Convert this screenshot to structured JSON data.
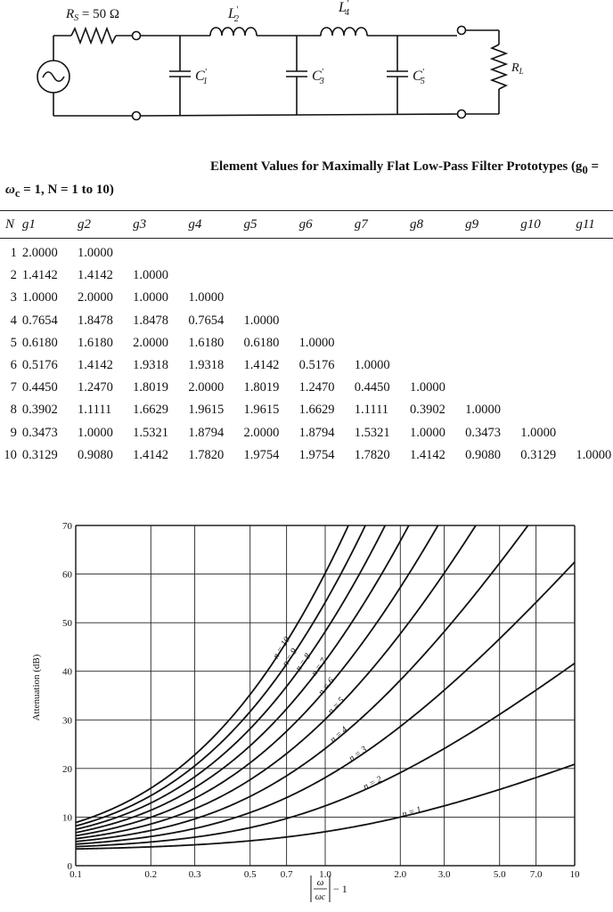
{
  "circuit": {
    "rs_label": "R_S = 50 Ω",
    "rs_text": "R",
    "rs_sub": "S",
    "rs_value": " = 50 Ω",
    "inductors": [
      {
        "name": "L",
        "sub": "2",
        "prime": "'"
      },
      {
        "name": "L",
        "sub": "4",
        "prime": "'"
      }
    ],
    "capacitors": [
      {
        "name": "C",
        "sub": "1",
        "prime": "'"
      },
      {
        "name": "C",
        "sub": "3",
        "prime": "'"
      },
      {
        "name": "C",
        "sub": "5",
        "prime": "'"
      }
    ],
    "load": {
      "name": "R",
      "sub": "L"
    }
  },
  "table": {
    "caption_line1": "Element Values for Maximally Flat Low-Pass Filter Prototypes (g",
    "caption_line1_sub": "0",
    "caption_line1_end": " =",
    "caption_line2": "ω",
    "caption_line2_sub": "c",
    "caption_line2_end": " = 1, N = 1 to 10)",
    "headers": [
      "N",
      "g1",
      "g2",
      "g3",
      "g4",
      "g5",
      "g6",
      "g7",
      "g8",
      "g9",
      "g10",
      "g11"
    ],
    "rows": [
      [
        "1",
        "2.0000",
        "1.0000",
        "",
        "",
        "",
        "",
        "",
        "",
        "",
        "",
        ""
      ],
      [
        "2",
        "1.4142",
        "1.4142",
        "1.0000",
        "",
        "",
        "",
        "",
        "",
        "",
        "",
        ""
      ],
      [
        "3",
        "1.0000",
        "2.0000",
        "1.0000",
        "1.0000",
        "",
        "",
        "",
        "",
        "",
        "",
        ""
      ],
      [
        "4",
        "0.7654",
        "1.8478",
        "1.8478",
        "0.7654",
        "1.0000",
        "",
        "",
        "",
        "",
        "",
        ""
      ],
      [
        "5",
        "0.6180",
        "1.6180",
        "2.0000",
        "1.6180",
        "0.6180",
        "1.0000",
        "",
        "",
        "",
        "",
        ""
      ],
      [
        "6",
        "0.5176",
        "1.4142",
        "1.9318",
        "1.9318",
        "1.4142",
        "0.5176",
        "1.0000",
        "",
        "",
        "",
        ""
      ],
      [
        "7",
        "0.4450",
        "1.2470",
        "1.8019",
        "2.0000",
        "1.8019",
        "1.2470",
        "0.4450",
        "1.0000",
        "",
        "",
        ""
      ],
      [
        "8",
        "0.3902",
        "1.1111",
        "1.6629",
        "1.9615",
        "1.9615",
        "1.6629",
        "1.1111",
        "0.3902",
        "1.0000",
        "",
        ""
      ],
      [
        "9",
        "0.3473",
        "1.0000",
        "1.5321",
        "1.8794",
        "2.0000",
        "1.8794",
        "1.5321",
        "1.0000",
        "0.3473",
        "1.0000",
        ""
      ],
      [
        "10",
        "0.3129",
        "0.9080",
        "1.4142",
        "1.7820",
        "1.9754",
        "1.9754",
        "1.7820",
        "1.4142",
        "0.9080",
        "0.3129",
        "1.0000"
      ]
    ]
  },
  "chart_data": {
    "type": "line",
    "xscale": "log",
    "xlim": [
      0.1,
      10
    ],
    "ylim": [
      0,
      70
    ],
    "x_ticks": [
      "0.1",
      "0.2",
      "0.3",
      "0.5",
      "0.7",
      "1.0",
      "2.0",
      "3.0",
      "5.0",
      "7.0",
      "10"
    ],
    "x_tick_values": [
      0.1,
      0.2,
      0.3,
      0.5,
      0.7,
      1.0,
      2.0,
      3.0,
      5.0,
      7.0,
      10
    ],
    "y_ticks": [
      "0",
      "10",
      "20",
      "30",
      "40",
      "50",
      "60",
      "70"
    ],
    "y_tick_values": [
      0,
      10,
      20,
      30,
      40,
      50,
      60,
      70
    ],
    "ylabel": "Attenuation (dB)",
    "xlabel": "|ω/ωc| − 1",
    "xlabel_num": "ω",
    "xlabel_den": "ωc",
    "xlabel_tail": "− 1",
    "grid": true,
    "series": [
      {
        "name": "n = 1",
        "n": 1
      },
      {
        "name": "n = 2",
        "n": 2
      },
      {
        "name": "n = 3",
        "n": 3
      },
      {
        "name": "n = 4",
        "n": 4
      },
      {
        "name": "n = 5",
        "n": 5
      },
      {
        "name": "n = 6",
        "n": 6
      },
      {
        "name": "n = 7",
        "n": 7
      },
      {
        "name": "n = 8",
        "n": 8
      },
      {
        "name": "n = 9",
        "n": 9
      },
      {
        "name": "n = 10",
        "n": 10
      }
    ],
    "formula": "10·log10(1 + (x+1)^(2n))"
  }
}
